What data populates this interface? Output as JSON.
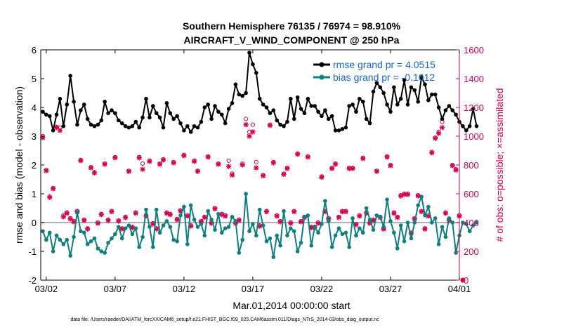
{
  "chart_data": {
    "type": "line",
    "title": "Southern Hemisphere 76135 / 76974 = 98.910%",
    "subtitle": "AIRCRAFT_V_WIND_COMPONENT @ 250 hPa",
    "xlabel": "Mar.01,2014 00:00:00 start",
    "ylabel": "rmse and bias (model - observation)",
    "ylabel_right": "# of obs: o=possible; ×=assimilated",
    "footnote": "data file: /Users/raeder/DAI/ATM_forcXX/CAM6_setup/f.e21.FHIST_BGC.f09_025.CAM6assim.011/Diags_NTrS_2014-03/obs_diag_output.nc",
    "xlim": [
      0.6,
      31.0
    ],
    "ylim": [
      -2,
      6
    ],
    "ylim_right": [
      0,
      1600
    ],
    "x_ticks": [
      1.0,
      6.0,
      11.0,
      16.0,
      21.0,
      26.0,
      31.0
    ],
    "x_tick_labels": [
      "03/02",
      "03/07",
      "03/12",
      "03/17",
      "03/22",
      "03/27",
      "04/01"
    ],
    "y_ticks": [
      "-2",
      "-1",
      "0",
      "1",
      "2",
      "3",
      "4",
      "5",
      "6"
    ],
    "y_ticks_right": [
      "0",
      "200",
      "400",
      "600",
      "800",
      "1000",
      "1200",
      "1400",
      "1600"
    ],
    "zero_line": 0,
    "x_step_days": 0.25,
    "series": [
      {
        "name": "rmse grand pr = 4.0515",
        "color": "#000000",
        "axis": "left",
        "x_start": 0.75,
        "values": [
          3.85,
          3.75,
          3.7,
          3.2,
          3.75,
          4.3,
          3.35,
          4.1,
          5.1,
          4.2,
          3.4,
          3.9,
          4.1,
          3.6,
          3.4,
          3.35,
          3.4,
          3.55,
          4.2,
          3.8,
          3.9,
          3.8,
          3.55,
          3.45,
          3.35,
          3.3,
          3.35,
          3.5,
          3.3,
          3.65,
          4.3,
          3.65,
          4.05,
          3.8,
          3.65,
          3.3,
          4.15,
          3.8,
          3.6,
          3.7,
          3.45,
          3.2,
          3.35,
          3.15,
          3.35,
          3.3,
          3.5,
          4.0,
          4.1,
          3.6,
          4.05,
          3.85,
          3.75,
          3.45,
          3.95,
          4.15,
          4.8,
          4.45,
          4.4,
          4.5,
          5.9,
          5.5,
          5.2,
          4.3,
          4.1,
          4.0,
          3.8,
          3.9,
          3.55,
          3.4,
          3.35,
          3.5,
          4.3,
          3.6,
          4.35,
          3.95,
          3.8,
          4.3,
          4.05,
          4.05,
          3.85,
          3.7,
          3.9,
          3.6,
          3.7,
          3.2,
          3.2,
          3.25,
          3.3,
          4.05,
          4.1,
          3.85,
          4.3,
          4.2,
          3.6,
          3.45,
          4.55,
          4.85,
          4.7,
          4.5,
          4.1,
          3.85,
          4.7,
          4.1,
          4.3,
          4.95,
          4.1,
          4.7,
          4.6,
          4.2,
          5.05,
          4.8,
          4.25,
          4.45,
          4.45,
          4.0,
          3.6,
          3.9,
          4.05,
          3.9,
          3.75,
          3.5,
          3.35,
          3.2,
          3.35,
          3.95,
          3.35
        ]
      },
      {
        "name": "bias grand pr = -0.1612",
        "color": "#0e7f7f",
        "axis": "left",
        "x_start": 0.75,
        "values": [
          -0.3,
          -0.6,
          -0.35,
          -1.0,
          -0.45,
          -0.6,
          -0.75,
          -0.6,
          -1.15,
          -0.5,
          0.35,
          -0.3,
          -0.35,
          -0.75,
          -0.65,
          -0.55,
          -0.9,
          -1.0,
          -1.05,
          -0.7,
          -0.55,
          -0.4,
          -0.15,
          -0.55,
          -0.2,
          -0.1,
          -0.4,
          -0.2,
          -0.85,
          -0.5,
          0.45,
          -0.15,
          -0.85,
          0.45,
          -0.35,
          -0.1,
          0.05,
          -0.15,
          -0.6,
          -0.65,
          0.25,
          0.55,
          -0.75,
          0.6,
          0.1,
          -0.15,
          -0.05,
          -0.45,
          0.4,
          0.1,
          -0.25,
          0.3,
          -0.35,
          -0.2,
          -0.15,
          0.2,
          0.05,
          -1.05,
          -0.6,
          1.0,
          -0.3,
          -0.05,
          -0.45,
          0.45,
          -0.1,
          -0.65,
          -0.55,
          -1.2,
          -0.45,
          -0.8,
          0.4,
          -0.45,
          -0.2,
          -0.3,
          -1.0,
          -0.7,
          0.2,
          0.25,
          -0.8,
          -0.15,
          -0.35,
          -0.05,
          0.75,
          0.05,
          -0.85,
          -0.45,
          -0.2,
          -0.4,
          -0.35,
          -0.85,
          0.15,
          -0.45,
          -0.2,
          -0.35,
          0.5,
          0.1,
          -0.25,
          0.25,
          0.2,
          -0.15,
          0.8,
          0.05,
          -0.35,
          -0.9,
          -0.1,
          -0.65,
          0.0,
          -0.55,
          0.0,
          0.6,
          0.9,
          0.25,
          0.55,
          0.0,
          0.15,
          -0.75,
          -0.15,
          -0.5,
          0.15,
          0.0,
          -1.05,
          -0.45,
          0.0,
          -0.05,
          -0.3,
          -0.1,
          0.0
        ]
      },
      {
        "name": "# obs possible",
        "color": "#d6004f",
        "axis": "right",
        "marker": "o",
        "x_start": 0.75,
        "values": [
          1000,
          765,
          580,
          640,
          1065,
          1060,
          450,
          470,
          430,
          410,
          480,
          835,
          420,
          360,
          785,
          750,
          400,
          460,
          810,
          420,
          480,
          855,
          415,
          360,
          440,
          760,
          370,
          470,
          855,
          810,
          450,
          830,
          395,
          360,
          810,
          840,
          470,
          460,
          820,
          425,
          485,
          870,
          450,
          380,
          830,
          760,
          410,
          440,
          860,
          400,
          500,
          810,
          460,
          450,
          830,
          740,
          400,
          420,
          810,
          1120,
          1030,
          1080,
          820,
          380,
          730,
          480,
          1080,
          820,
          450,
          410,
          740,
          780,
          400,
          480,
          880,
          410,
          440,
          860,
          370,
          370,
          400,
          720,
          480,
          430,
          780,
          810,
          440,
          480,
          480,
          780,
          780,
          390,
          450,
          850,
          470,
          400,
          420,
          760,
          440,
          360,
          860,
          800,
          470,
          440,
          590,
          600,
          600,
          330,
          430,
          590,
          480,
          360,
          450,
          890,
          990,
          1030,
          1100,
          470,
          420,
          800,
          770,
          450,
          0
        ]
      },
      {
        "name": "# obs assimilated",
        "color": "#d6004f",
        "axis": "right",
        "marker": "x",
        "x_start": 0.75,
        "values": [
          990,
          760,
          575,
          635,
          1060,
          1040,
          440,
          465,
          425,
          405,
          475,
          830,
          415,
          355,
          780,
          745,
          395,
          455,
          805,
          415,
          475,
          850,
          410,
          355,
          435,
          755,
          365,
          465,
          850,
          770,
          445,
          825,
          390,
          355,
          805,
          835,
          465,
          455,
          815,
          420,
          480,
          865,
          445,
          375,
          825,
          755,
          405,
          435,
          855,
          395,
          495,
          805,
          455,
          445,
          790,
          730,
          395,
          415,
          800,
          1080,
          1000,
          1030,
          780,
          375,
          725,
          475,
          1075,
          815,
          445,
          405,
          735,
          775,
          395,
          475,
          875,
          405,
          435,
          855,
          365,
          365,
          395,
          715,
          475,
          425,
          775,
          805,
          435,
          475,
          475,
          775,
          775,
          385,
          445,
          845,
          465,
          395,
          415,
          755,
          435,
          355,
          855,
          795,
          465,
          435,
          585,
          595,
          595,
          325,
          425,
          585,
          475,
          355,
          445,
          885,
          985,
          1020,
          1060,
          465,
          415,
          795,
          765,
          445,
          0
        ]
      }
    ],
    "legend": [
      "rmse grand pr = 4.0515",
      "bias grand pr = -0.1612"
    ]
  }
}
